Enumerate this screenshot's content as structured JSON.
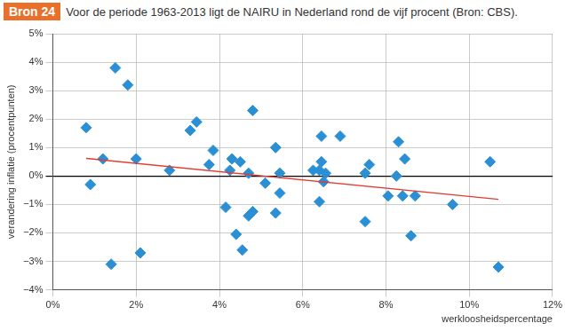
{
  "chart_data": {
    "type": "scatter",
    "annotations": [
      "Bron 24"
    ],
    "title": "Voor de periode 1963-2013 ligt de NAIRU in Nederland rond de vijf procent (Bron: CBS).",
    "x_label": "werkloosheidspercentage",
    "y_label": "verandering inflatie (procentpunten)",
    "xlim": [
      0,
      12
    ],
    "xticks": [
      {
        "value": 0,
        "label": "0%"
      },
      {
        "value": 2,
        "label": "2%"
      },
      {
        "value": 4,
        "label": "4%"
      },
      {
        "value": 6,
        "label": "6%"
      },
      {
        "value": 8,
        "label": "8%"
      },
      {
        "value": 10,
        "label": "10%"
      },
      {
        "value": 12,
        "label": "12%"
      }
    ],
    "ylim": [
      -4,
      5
    ],
    "yticks": [
      {
        "value": -4,
        "label": "−4%"
      },
      {
        "value": -3,
        "label": "−3%"
      },
      {
        "value": -2,
        "label": "−2%"
      },
      {
        "value": -1,
        "label": "−1%"
      },
      {
        "value": 0,
        "label": "0%"
      },
      {
        "value": 1,
        "label": "1%"
      },
      {
        "value": 2,
        "label": "2%"
      },
      {
        "value": 3,
        "label": "3%"
      },
      {
        "value": 4,
        "label": "4%"
      },
      {
        "value": 5,
        "label": "5%"
      }
    ],
    "grid": true,
    "series": [
      {
        "type": "scatter",
        "color": "#2a8fd4",
        "marker": "diamond",
        "x": [
          0.8,
          0.9,
          1.2,
          1.4,
          1.5,
          1.8,
          2.0,
          2.1,
          2.8,
          3.3,
          3.45,
          3.75,
          3.85,
          4.15,
          4.25,
          4.3,
          4.4,
          4.5,
          4.55,
          4.7,
          4.7,
          4.8,
          4.8,
          5.1,
          5.35,
          5.35,
          5.45,
          5.45,
          6.25,
          6.4,
          6.4,
          6.45,
          6.45,
          6.5,
          6.55,
          6.9,
          7.5,
          7.5,
          7.6,
          8.05,
          8.25,
          8.3,
          8.4,
          8.45,
          8.6,
          8.7,
          9.6,
          10.5,
          10.7
        ],
        "values": [
          1.7,
          -0.3,
          0.6,
          -3.1,
          3.8,
          3.2,
          0.6,
          -2.7,
          0.2,
          1.6,
          1.9,
          0.4,
          0.9,
          -1.1,
          0.2,
          0.6,
          -2.05,
          0.5,
          -2.6,
          0.1,
          -1.4,
          -1.25,
          2.3,
          -0.25,
          1.0,
          -1.3,
          0.1,
          -0.6,
          0.2,
          0.2,
          -0.9,
          1.4,
          0.5,
          -0.2,
          0.1,
          1.4,
          0.1,
          -1.6,
          0.4,
          -0.7,
          0.0,
          1.2,
          -0.7,
          0.6,
          -2.1,
          -0.7,
          -1.0,
          0.5,
          -3.2
        ]
      },
      {
        "type": "line",
        "color": "#e03c31",
        "line_style": "solid",
        "x": [
          0.8,
          10.7
        ],
        "values": [
          0.62,
          -0.82
        ]
      }
    ]
  }
}
